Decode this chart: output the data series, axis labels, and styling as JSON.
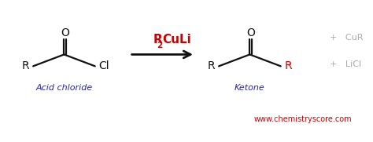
{
  "bg_color": "#ffffff",
  "acid_chloride_label": "Acid chloride",
  "ketone_label": "Ketone",
  "reagent_label_parts": [
    [
      "R",
      false
    ],
    [
      "2",
      true
    ],
    [
      "CuLi",
      false
    ]
  ],
  "byproduct1": "+   CuR",
  "byproduct2": "+   LiCl",
  "website": "www.chemistryscore.com",
  "blue_color": "#2222cc",
  "red_color": "#cc0000",
  "gray_color": "#aaaaaa",
  "black_color": "#111111",
  "website_color": "#cc0000",
  "label_color": "#2222cc",
  "lw": 1.6,
  "fs_chem": 10,
  "fs_label": 8,
  "fs_website": 7
}
